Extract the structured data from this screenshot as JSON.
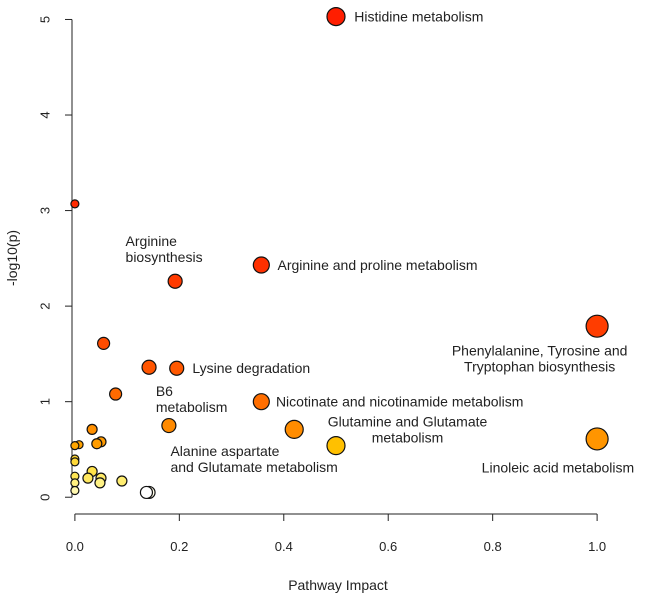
{
  "chart_data": {
    "type": "scatter",
    "xlabel": "Pathway Impact",
    "ylabel": "-log10(p)",
    "xlim": [
      -0.04,
      1.04
    ],
    "ylim": [
      -0.05,
      5.12
    ],
    "x_ticks": [
      "0.0",
      "0.2",
      "0.4",
      "0.6",
      "0.8",
      "1.0"
    ],
    "y_ticks": [
      "0",
      "1",
      "2",
      "3",
      "4",
      "5"
    ],
    "grid": false,
    "legend": "none",
    "points": [
      {
        "x": 0.5,
        "y": 5.03,
        "size": 9,
        "color": "#ff1e00"
      },
      {
        "x": 0.0,
        "y": 3.07,
        "size": 4,
        "color": "#ff2a00"
      },
      {
        "x": 0.357,
        "y": 2.43,
        "size": 8,
        "color": "#ff3000"
      },
      {
        "x": 0.192,
        "y": 2.26,
        "size": 7,
        "color": "#ff3a00"
      },
      {
        "x": 1.0,
        "y": 1.79,
        "size": 11,
        "color": "#ff3d00"
      },
      {
        "x": 0.055,
        "y": 1.61,
        "size": 6,
        "color": "#ff4c00"
      },
      {
        "x": 0.142,
        "y": 1.36,
        "size": 7,
        "color": "#ff5500"
      },
      {
        "x": 0.195,
        "y": 1.35,
        "size": 7,
        "color": "#ff5800"
      },
      {
        "x": 0.078,
        "y": 1.08,
        "size": 6,
        "color": "#ff6a00"
      },
      {
        "x": 0.357,
        "y": 1.0,
        "size": 8,
        "color": "#ff6e00"
      },
      {
        "x": 0.18,
        "y": 0.75,
        "size": 7,
        "color": "#ff8a00"
      },
      {
        "x": 0.42,
        "y": 0.71,
        "size": 9,
        "color": "#ff8c00"
      },
      {
        "x": 0.033,
        "y": 0.71,
        "size": 5,
        "color": "#ff8f00"
      },
      {
        "x": 1.0,
        "y": 0.61,
        "size": 11,
        "color": "#ff9500"
      },
      {
        "x": 0.05,
        "y": 0.58,
        "size": 5,
        "color": "#ff9a00"
      },
      {
        "x": 0.042,
        "y": 0.56,
        "size": 5,
        "color": "#ff9c00"
      },
      {
        "x": 0.008,
        "y": 0.55,
        "size": 4,
        "color": "#ffa200"
      },
      {
        "x": 0.0,
        "y": 0.54,
        "size": 4,
        "color": "#ffa600"
      },
      {
        "x": 0.5,
        "y": 0.54,
        "size": 9,
        "color": "#ffc000"
      },
      {
        "x": 0.0,
        "y": 0.4,
        "size": 4,
        "color": "#ffd530"
      },
      {
        "x": 0.0,
        "y": 0.37,
        "size": 4,
        "color": "#ffd93a"
      },
      {
        "x": 0.033,
        "y": 0.27,
        "size": 5,
        "color": "#ffe24a"
      },
      {
        "x": 0.0,
        "y": 0.22,
        "size": 4,
        "color": "#ffe655"
      },
      {
        "x": 0.025,
        "y": 0.2,
        "size": 5,
        "color": "#ffe860"
      },
      {
        "x": 0.05,
        "y": 0.2,
        "size": 5,
        "color": "#ffea68"
      },
      {
        "x": 0.09,
        "y": 0.17,
        "size": 5,
        "color": "#ffed70"
      },
      {
        "x": 0.0,
        "y": 0.15,
        "size": 4,
        "color": "#fff080"
      },
      {
        "x": 0.048,
        "y": 0.15,
        "size": 5,
        "color": "#fff285"
      },
      {
        "x": 0.0,
        "y": 0.07,
        "size": 4,
        "color": "#fff8b0"
      },
      {
        "x": 0.142,
        "y": 0.05,
        "size": 6,
        "color": "#fffce8"
      },
      {
        "x": 0.137,
        "y": 0.05,
        "size": 6,
        "color": "#ffffff"
      }
    ],
    "annotations": [
      {
        "lines": [
          "Histidine metabolism"
        ],
        "x": 0.535,
        "y": 5.03,
        "anchor": "start"
      },
      {
        "lines": [
          "Arginine and proline metabolism"
        ],
        "x": 0.388,
        "y": 2.43,
        "anchor": "start"
      },
      {
        "lines": [
          "Arginine",
          "biosynthesis"
        ],
        "x": 0.097,
        "y": 2.6,
        "anchor": "start"
      },
      {
        "lines": [
          "Phenylalanine, Tyrosine and",
          "Tryptophan biosynthesis"
        ],
        "x": 0.89,
        "y": 1.45,
        "anchor": "middle"
      },
      {
        "lines": [
          "Lysine degradation"
        ],
        "x": 0.225,
        "y": 1.35,
        "anchor": "start"
      },
      {
        "lines": [
          "B6",
          "metabolism"
        ],
        "x": 0.155,
        "y": 1.03,
        "anchor": "start"
      },
      {
        "lines": [
          "Nicotinate and nicotinamide metabolism"
        ],
        "x": 0.385,
        "y": 1.0,
        "anchor": "start"
      },
      {
        "lines": [
          "Glutamine and Glutamate",
          "metabolism"
        ],
        "x": 0.637,
        "y": 0.71,
        "anchor": "middle"
      },
      {
        "lines": [
          "Alanine aspartate",
          "and Glutamate metabolism"
        ],
        "x": 0.183,
        "y": 0.4,
        "anchor": "start"
      },
      {
        "lines": [
          "Linoleic acid metabolism"
        ],
        "x": 0.925,
        "y": 0.31,
        "anchor": "middle"
      }
    ]
  }
}
